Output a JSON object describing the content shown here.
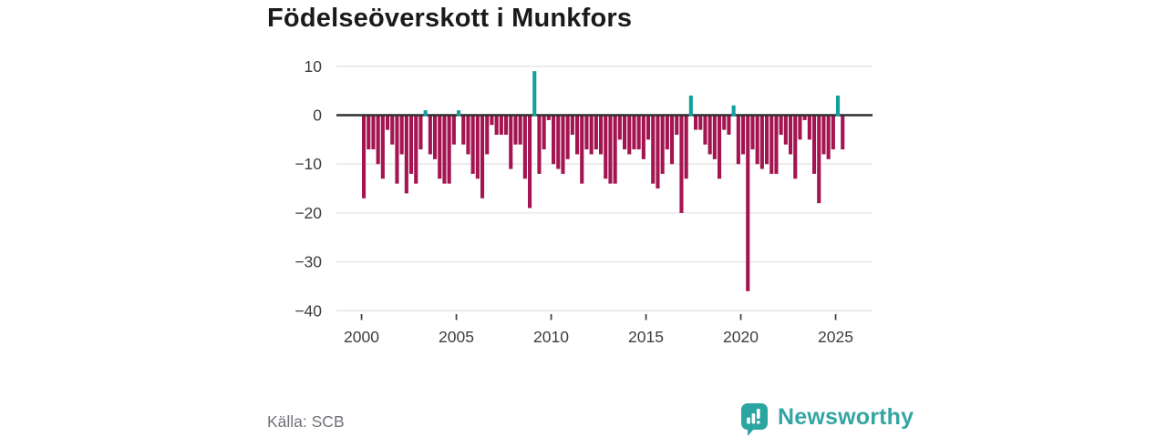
{
  "title": "Födelseöverskott i Munkfors",
  "source": {
    "label": "Källa: SCB"
  },
  "branding": {
    "name": "Newsworthy",
    "icon": "newsworthy-speech-bubble-bars-icon"
  },
  "colors": {
    "negative_bar": "#a31450",
    "positive_bar": "#11a09f",
    "zero_line": "#2f2f2f",
    "gridline": "#e3e3e3",
    "axis_text": "#3d3d3d",
    "title_text": "#1a1a1a",
    "source_text": "#71717a",
    "brand_teal": "#2aa5a2"
  },
  "chart_data": {
    "type": "bar",
    "title": "Födelseöverskott i Munkfors",
    "frequency": "quarterly",
    "start": "2000 Q1",
    "end": "2025 Q2",
    "ylim": [
      -40,
      10
    ],
    "grid": "horizontal",
    "legend": "none",
    "y_ticks": [
      10,
      0,
      -10,
      -20,
      -30,
      -40
    ],
    "y_tick_labels": [
      "10",
      "0",
      "−10",
      "−20",
      "−30",
      "−40"
    ],
    "x_ticks": [
      2000,
      2005,
      2010,
      2015,
      2020,
      2025
    ],
    "x_tick_labels": [
      "2000",
      "2005",
      "2010",
      "2015",
      "2020",
      "2025"
    ],
    "values": [
      -17,
      -7,
      -7,
      -10,
      -13,
      -3,
      -6,
      -14,
      -8,
      -16,
      -12,
      -14,
      -7,
      1,
      -8,
      -9,
      -13,
      -14,
      -14,
      -6,
      1,
      -6,
      -8,
      -12,
      -13,
      -17,
      -8,
      -2,
      -4,
      -4,
      -4,
      -11,
      -6,
      -6,
      -13,
      -19,
      9,
      -12,
      -7,
      -1,
      -10,
      -11,
      -12,
      -9,
      -4,
      -8,
      -14,
      -7,
      -8,
      -7,
      -8,
      -13,
      -14,
      -14,
      -5,
      -7,
      -8,
      -7,
      -7,
      -9,
      -5,
      -14,
      -15,
      -12,
      -7,
      -10,
      -4,
      -20,
      -13,
      4,
      -3,
      -3,
      -6,
      -8,
      -9,
      -13,
      -3,
      -4,
      2,
      -10,
      -8,
      -36,
      -7,
      -10,
      -11,
      -10,
      -12,
      -12,
      -4,
      -6,
      -8,
      -13,
      -5,
      -1,
      -5,
      -12,
      -18,
      -8,
      -9,
      -7,
      4,
      -7
    ]
  }
}
